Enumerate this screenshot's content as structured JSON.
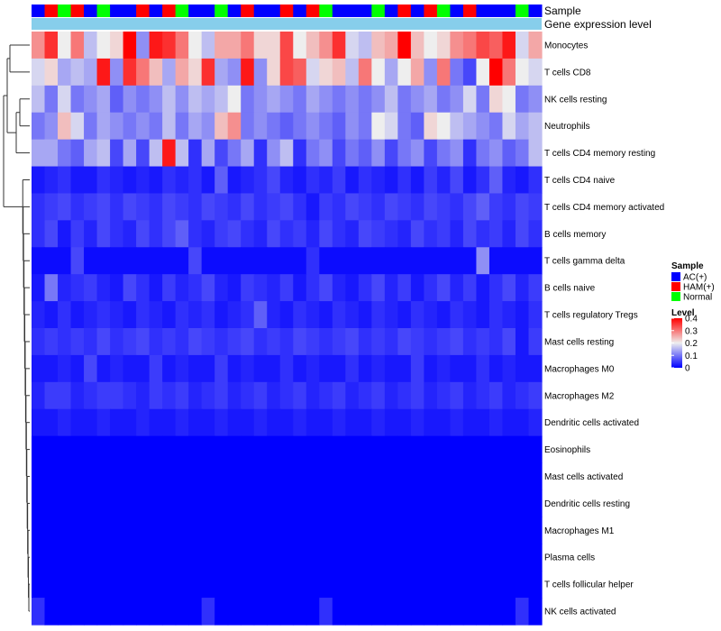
{
  "chart_data": {
    "type": "heatmap",
    "title": "",
    "annotation_tracks": [
      {
        "label": "Sample",
        "values": [
          "AC(+)",
          "HAM(+)",
          "Normal",
          "HAM(+)",
          "AC(+)",
          "Normal",
          "AC(+)",
          "AC(+)",
          "HAM(+)",
          "AC(+)",
          "HAM(+)",
          "Normal",
          "AC(+)",
          "AC(+)",
          "Normal",
          "AC(+)",
          "HAM(+)",
          "AC(+)",
          "AC(+)",
          "HAM(+)",
          "AC(+)",
          "HAM(+)",
          "Normal",
          "AC(+)",
          "AC(+)",
          "AC(+)",
          "Normal",
          "AC(+)",
          "HAM(+)",
          "AC(+)",
          "HAM(+)",
          "Normal",
          "AC(+)",
          "HAM(+)",
          "AC(+)",
          "AC(+)",
          "AC(+)",
          "Normal",
          "AC(+)"
        ]
      },
      {
        "label": "Gene expression level",
        "values": []
      }
    ],
    "rows": [
      "Monocytes",
      "T cells CD8",
      "NK cells resting",
      "Neutrophils",
      "T cells CD4 memory resting",
      "T cells CD4 naive",
      "T cells CD4 memory activated",
      "B cells memory",
      "T cells gamma delta",
      "B cells naive",
      "T cells regulatory  Tregs",
      "Mast cells resting",
      "Macrophages M0",
      "Macrophages M2",
      "Dendritic cells activated",
      "Eosinophils",
      "Mast cells activated",
      "Dendritic cells resting",
      "Macrophages M1",
      "Plasma cells",
      "T cells follicular helper",
      "NK cells activated"
    ],
    "values": [
      [
        0.28,
        0.36,
        0.2,
        0.3,
        0.16,
        0.2,
        0.22,
        0.4,
        0.12,
        0.38,
        0.36,
        0.3,
        0.2,
        0.16,
        0.26,
        0.26,
        0.3,
        0.22,
        0.22,
        0.34,
        0.2,
        0.24,
        0.28,
        0.36,
        0.18,
        0.16,
        0.24,
        0.26,
        0.4,
        0.24,
        0.2,
        0.22,
        0.28,
        0.3,
        0.34,
        0.32,
        0.38,
        0.18,
        0.26
      ],
      [
        0.18,
        0.22,
        0.14,
        0.16,
        0.14,
        0.38,
        0.12,
        0.36,
        0.3,
        0.24,
        0.14,
        0.26,
        0.22,
        0.36,
        0.14,
        0.12,
        0.38,
        0.12,
        0.22,
        0.34,
        0.32,
        0.18,
        0.22,
        0.24,
        0.16,
        0.3,
        0.2,
        0.14,
        0.2,
        0.26,
        0.12,
        0.3,
        0.1,
        0.06,
        0.2,
        0.4,
        0.3,
        0.2,
        0.18
      ],
      [
        0.16,
        0.1,
        0.18,
        0.1,
        0.12,
        0.14,
        0.08,
        0.12,
        0.1,
        0.12,
        0.16,
        0.12,
        0.16,
        0.14,
        0.16,
        0.2,
        0.1,
        0.12,
        0.14,
        0.12,
        0.1,
        0.14,
        0.12,
        0.1,
        0.12,
        0.1,
        0.12,
        0.16,
        0.1,
        0.12,
        0.14,
        0.1,
        0.12,
        0.18,
        0.1,
        0.22,
        0.2,
        0.1,
        0.12
      ],
      [
        0.1,
        0.12,
        0.24,
        0.18,
        0.1,
        0.14,
        0.12,
        0.1,
        0.12,
        0.1,
        0.16,
        0.1,
        0.14,
        0.12,
        0.24,
        0.28,
        0.1,
        0.12,
        0.1,
        0.08,
        0.1,
        0.12,
        0.1,
        0.08,
        0.12,
        0.1,
        0.2,
        0.18,
        0.1,
        0.08,
        0.22,
        0.2,
        0.16,
        0.14,
        0.12,
        0.1,
        0.18,
        0.14,
        0.16
      ],
      [
        0.14,
        0.14,
        0.1,
        0.08,
        0.14,
        0.16,
        0.06,
        0.14,
        0.06,
        0.16,
        0.38,
        0.16,
        0.04,
        0.14,
        0.06,
        0.1,
        0.14,
        0.04,
        0.12,
        0.16,
        0.04,
        0.1,
        0.12,
        0.06,
        0.1,
        0.08,
        0.12,
        0.06,
        0.1,
        0.12,
        0.06,
        0.1,
        0.12,
        0.04,
        0.1,
        0.12,
        0.08,
        0.1,
        0.16
      ],
      [
        0.02,
        0.03,
        0.04,
        0.02,
        0.02,
        0.04,
        0.03,
        0.02,
        0.03,
        0.02,
        0.04,
        0.03,
        0.04,
        0.02,
        0.08,
        0.02,
        0.03,
        0.04,
        0.06,
        0.03,
        0.02,
        0.04,
        0.03,
        0.05,
        0.02,
        0.04,
        0.03,
        0.02,
        0.04,
        0.02,
        0.05,
        0.03,
        0.06,
        0.02,
        0.04,
        0.08,
        0.03,
        0.02,
        0.04
      ],
      [
        0.04,
        0.05,
        0.06,
        0.04,
        0.05,
        0.06,
        0.04,
        0.06,
        0.05,
        0.04,
        0.06,
        0.05,
        0.04,
        0.06,
        0.05,
        0.04,
        0.06,
        0.04,
        0.05,
        0.06,
        0.04,
        0.02,
        0.05,
        0.04,
        0.06,
        0.05,
        0.04,
        0.06,
        0.05,
        0.04,
        0.06,
        0.05,
        0.04,
        0.06,
        0.08,
        0.05,
        0.04,
        0.06,
        0.05
      ],
      [
        0.04,
        0.06,
        0.02,
        0.05,
        0.03,
        0.06,
        0.04,
        0.03,
        0.06,
        0.04,
        0.06,
        0.08,
        0.04,
        0.03,
        0.05,
        0.06,
        0.04,
        0.03,
        0.06,
        0.04,
        0.05,
        0.03,
        0.06,
        0.04,
        0.03,
        0.06,
        0.05,
        0.04,
        0.03,
        0.06,
        0.04,
        0.05,
        0.03,
        0.06,
        0.04,
        0.05,
        0.03,
        0.06,
        0.04
      ],
      [
        0.01,
        0.01,
        0.01,
        0.06,
        0.01,
        0.01,
        0.01,
        0.01,
        0.01,
        0.01,
        0.01,
        0.01,
        0.06,
        0.01,
        0.01,
        0.01,
        0.01,
        0.01,
        0.01,
        0.01,
        0.01,
        0.04,
        0.01,
        0.01,
        0.01,
        0.01,
        0.01,
        0.01,
        0.01,
        0.01,
        0.01,
        0.01,
        0.01,
        0.01,
        0.12,
        0.01,
        0.01,
        0.01,
        0.01
      ],
      [
        0.02,
        0.1,
        0.03,
        0.04,
        0.05,
        0.03,
        0.02,
        0.06,
        0.04,
        0.02,
        0.05,
        0.03,
        0.04,
        0.06,
        0.03,
        0.02,
        0.05,
        0.04,
        0.03,
        0.05,
        0.02,
        0.04,
        0.06,
        0.03,
        0.02,
        0.04,
        0.06,
        0.03,
        0.05,
        0.02,
        0.04,
        0.06,
        0.03,
        0.05,
        0.02,
        0.04,
        0.06,
        0.03,
        0.05
      ],
      [
        0.03,
        0.02,
        0.04,
        0.02,
        0.03,
        0.04,
        0.03,
        0.02,
        0.04,
        0.03,
        0.02,
        0.04,
        0.03,
        0.04,
        0.02,
        0.03,
        0.04,
        0.08,
        0.03,
        0.02,
        0.04,
        0.03,
        0.02,
        0.04,
        0.03,
        0.02,
        0.04,
        0.03,
        0.02,
        0.04,
        0.03,
        0.02,
        0.04,
        0.03,
        0.02,
        0.04,
        0.03,
        0.02,
        0.04
      ],
      [
        0.04,
        0.05,
        0.04,
        0.05,
        0.04,
        0.06,
        0.04,
        0.05,
        0.06,
        0.04,
        0.05,
        0.04,
        0.06,
        0.05,
        0.04,
        0.05,
        0.06,
        0.04,
        0.05,
        0.04,
        0.06,
        0.05,
        0.04,
        0.05,
        0.06,
        0.04,
        0.05,
        0.04,
        0.06,
        0.05,
        0.04,
        0.05,
        0.06,
        0.04,
        0.05,
        0.04,
        0.06,
        0.02,
        0.05
      ],
      [
        0.02,
        0.02,
        0.03,
        0.02,
        0.06,
        0.02,
        0.03,
        0.02,
        0.02,
        0.05,
        0.02,
        0.03,
        0.02,
        0.02,
        0.05,
        0.02,
        0.03,
        0.02,
        0.02,
        0.04,
        0.02,
        0.03,
        0.02,
        0.02,
        0.04,
        0.02,
        0.03,
        0.02,
        0.02,
        0.05,
        0.02,
        0.03,
        0.02,
        0.02,
        0.04,
        0.02,
        0.03,
        0.02,
        0.02
      ],
      [
        0.03,
        0.05,
        0.05,
        0.03,
        0.04,
        0.05,
        0.05,
        0.04,
        0.03,
        0.05,
        0.04,
        0.05,
        0.03,
        0.04,
        0.05,
        0.03,
        0.04,
        0.05,
        0.03,
        0.04,
        0.05,
        0.03,
        0.04,
        0.05,
        0.03,
        0.04,
        0.05,
        0.03,
        0.04,
        0.05,
        0.03,
        0.04,
        0.05,
        0.03,
        0.04,
        0.05,
        0.03,
        0.04,
        0.05
      ],
      [
        0.02,
        0.02,
        0.03,
        0.02,
        0.02,
        0.03,
        0.02,
        0.02,
        0.03,
        0.02,
        0.02,
        0.03,
        0.02,
        0.02,
        0.03,
        0.02,
        0.02,
        0.03,
        0.02,
        0.02,
        0.03,
        0.02,
        0.02,
        0.03,
        0.02,
        0.02,
        0.03,
        0.02,
        0.02,
        0.03,
        0.02,
        0.02,
        0.03,
        0.02,
        0.02,
        0.03,
        0.02,
        0.02,
        0.03
      ],
      [
        0,
        0,
        0,
        0,
        0,
        0,
        0,
        0,
        0,
        0,
        0,
        0,
        0,
        0,
        0,
        0,
        0,
        0,
        0,
        0,
        0,
        0,
        0,
        0,
        0,
        0,
        0,
        0,
        0,
        0,
        0,
        0,
        0,
        0,
        0,
        0,
        0,
        0,
        0
      ],
      [
        0,
        0,
        0,
        0,
        0,
        0,
        0,
        0,
        0,
        0,
        0,
        0,
        0,
        0,
        0,
        0,
        0,
        0,
        0,
        0,
        0,
        0,
        0,
        0,
        0,
        0,
        0,
        0,
        0,
        0,
        0,
        0,
        0,
        0,
        0,
        0,
        0,
        0,
        0
      ],
      [
        0,
        0,
        0,
        0,
        0,
        0,
        0,
        0,
        0,
        0,
        0,
        0,
        0,
        0,
        0,
        0,
        0,
        0,
        0,
        0,
        0,
        0,
        0,
        0,
        0,
        0,
        0,
        0,
        0,
        0,
        0,
        0,
        0,
        0,
        0,
        0,
        0,
        0,
        0
      ],
      [
        0,
        0,
        0,
        0,
        0,
        0,
        0,
        0,
        0,
        0,
        0,
        0,
        0,
        0,
        0,
        0,
        0,
        0,
        0,
        0,
        0,
        0,
        0,
        0,
        0,
        0,
        0,
        0,
        0,
        0,
        0,
        0,
        0,
        0,
        0,
        0,
        0,
        0,
        0
      ],
      [
        0,
        0,
        0,
        0,
        0,
        0,
        0,
        0,
        0,
        0,
        0,
        0,
        0,
        0,
        0,
        0,
        0,
        0,
        0,
        0,
        0,
        0,
        0,
        0,
        0,
        0,
        0,
        0,
        0,
        0,
        0,
        0,
        0,
        0,
        0,
        0,
        0,
        0,
        0
      ],
      [
        0,
        0,
        0,
        0,
        0,
        0,
        0,
        0,
        0,
        0,
        0,
        0,
        0,
        0,
        0,
        0,
        0,
        0,
        0,
        0,
        0,
        0,
        0,
        0,
        0,
        0,
        0,
        0,
        0,
        0,
        0,
        0,
        0,
        0,
        0,
        0,
        0,
        0,
        0
      ],
      [
        0.04,
        0,
        0,
        0,
        0,
        0,
        0,
        0,
        0,
        0,
        0,
        0,
        0,
        0.04,
        0,
        0,
        0,
        0,
        0,
        0,
        0,
        0,
        0.04,
        0,
        0,
        0,
        0,
        0,
        0,
        0,
        0,
        0,
        0,
        0,
        0,
        0,
        0,
        0.04,
        0
      ]
    ],
    "color_scale": {
      "min": 0,
      "max": 0.4,
      "colors": [
        "#0000ff",
        "#eeeeee",
        "#ff0000"
      ]
    },
    "legend": {
      "position": "right",
      "sample_title": "Sample",
      "sample_entries": [
        {
          "label": "AC(+)",
          "color": "#0000ff"
        },
        {
          "label": "HAM(+)",
          "color": "#ff0000"
        },
        {
          "label": "Normal",
          "color": "#00ff00"
        }
      ],
      "level_title": "Level",
      "level_ticks": [
        "0.4",
        "0.3",
        "0.2",
        "0.1",
        "0"
      ]
    },
    "expression_bar_color": "#87ceeb"
  }
}
